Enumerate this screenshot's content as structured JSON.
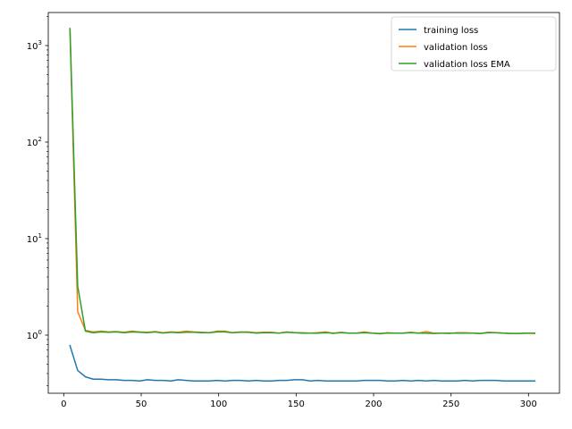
{
  "chart_data": {
    "type": "line",
    "title": "",
    "xlabel": "",
    "ylabel": "",
    "xlim": [
      -10,
      320
    ],
    "ylim": [
      0.25,
      2200
    ],
    "yscale": "log",
    "x_ticks": [
      0,
      50,
      100,
      150,
      200,
      250,
      300
    ],
    "y_ticks": [
      {
        "value": 1,
        "mantissa": "10",
        "exp": "0"
      },
      {
        "value": 10,
        "mantissa": "10",
        "exp": "1"
      },
      {
        "value": 100,
        "mantissa": "10",
        "exp": "2"
      },
      {
        "value": 1000,
        "mantissa": "10",
        "exp": "3"
      }
    ],
    "grid": false,
    "legend_position": "top-right",
    "series": [
      {
        "name": "training loss",
        "color": "#1f77b4",
        "x": [
          4,
          9,
          14,
          19,
          24,
          29,
          34,
          39,
          44,
          49,
          54,
          59,
          64,
          69,
          74,
          79,
          84,
          89,
          94,
          99,
          104,
          109,
          114,
          119,
          124,
          129,
          134,
          139,
          144,
          149,
          154,
          159,
          164,
          169,
          174,
          179,
          184,
          189,
          194,
          199,
          204,
          209,
          214,
          219,
          224,
          229,
          234,
          239,
          244,
          249,
          254,
          259,
          264,
          269,
          274,
          279,
          284,
          289,
          294,
          299,
          304
        ],
        "y": [
          0.78,
          0.43,
          0.37,
          0.35,
          0.35,
          0.345,
          0.345,
          0.34,
          0.34,
          0.335,
          0.345,
          0.34,
          0.34,
          0.335,
          0.345,
          0.34,
          0.335,
          0.335,
          0.335,
          0.34,
          0.335,
          0.34,
          0.34,
          0.335,
          0.34,
          0.335,
          0.335,
          0.34,
          0.34,
          0.345,
          0.345,
          0.335,
          0.34,
          0.335,
          0.335,
          0.335,
          0.335,
          0.335,
          0.34,
          0.34,
          0.34,
          0.335,
          0.335,
          0.34,
          0.335,
          0.34,
          0.335,
          0.34,
          0.335,
          0.335,
          0.335,
          0.34,
          0.335,
          0.34,
          0.34,
          0.34,
          0.335,
          0.335,
          0.335,
          0.335,
          0.335
        ]
      },
      {
        "name": "validation loss",
        "color": "#ff7f0e",
        "x": [
          4,
          9,
          14,
          19,
          24,
          29,
          34,
          39,
          44,
          49,
          54,
          59,
          64,
          69,
          74,
          79,
          84,
          89,
          94,
          99,
          104,
          109,
          114,
          119,
          124,
          129,
          134,
          139,
          144,
          149,
          154,
          159,
          164,
          169,
          174,
          179,
          184,
          189,
          194,
          199,
          204,
          209,
          214,
          219,
          224,
          229,
          234,
          239,
          244,
          249,
          254,
          259,
          264,
          269,
          274,
          279,
          284,
          289,
          294,
          299,
          304
        ],
        "y": [
          1500,
          1.75,
          1.12,
          1.08,
          1.1,
          1.08,
          1.09,
          1.07,
          1.1,
          1.08,
          1.07,
          1.09,
          1.06,
          1.08,
          1.07,
          1.1,
          1.08,
          1.07,
          1.06,
          1.1,
          1.1,
          1.06,
          1.08,
          1.08,
          1.06,
          1.07,
          1.07,
          1.05,
          1.08,
          1.06,
          1.06,
          1.05,
          1.06,
          1.08,
          1.04,
          1.07,
          1.05,
          1.05,
          1.08,
          1.05,
          1.03,
          1.06,
          1.05,
          1.05,
          1.07,
          1.05,
          1.09,
          1.05,
          1.05,
          1.04,
          1.06,
          1.06,
          1.05,
          1.04,
          1.07,
          1.06,
          1.05,
          1.04,
          1.04,
          1.05,
          1.04
        ]
      },
      {
        "name": "validation loss EMA",
        "color": "#2ca02c",
        "x": [
          4,
          9,
          14,
          19,
          24,
          29,
          34,
          39,
          44,
          49,
          54,
          59,
          64,
          69,
          74,
          79,
          84,
          89,
          94,
          99,
          104,
          109,
          114,
          119,
          124,
          129,
          134,
          139,
          144,
          149,
          154,
          159,
          164,
          169,
          174,
          179,
          184,
          189,
          194,
          199,
          204,
          209,
          214,
          219,
          224,
          229,
          234,
          239,
          244,
          249,
          254,
          259,
          264,
          269,
          274,
          279,
          284,
          289,
          294,
          299,
          304
        ],
        "y": [
          1500,
          3.2,
          1.1,
          1.06,
          1.08,
          1.07,
          1.08,
          1.06,
          1.08,
          1.07,
          1.06,
          1.08,
          1.05,
          1.07,
          1.06,
          1.07,
          1.07,
          1.06,
          1.06,
          1.08,
          1.08,
          1.06,
          1.07,
          1.07,
          1.05,
          1.06,
          1.06,
          1.05,
          1.07,
          1.06,
          1.05,
          1.05,
          1.05,
          1.06,
          1.05,
          1.06,
          1.05,
          1.05,
          1.06,
          1.05,
          1.04,
          1.05,
          1.05,
          1.05,
          1.06,
          1.05,
          1.05,
          1.04,
          1.05,
          1.05,
          1.05,
          1.05,
          1.05,
          1.04,
          1.06,
          1.06,
          1.05,
          1.04,
          1.04,
          1.05,
          1.05
        ]
      }
    ]
  }
}
